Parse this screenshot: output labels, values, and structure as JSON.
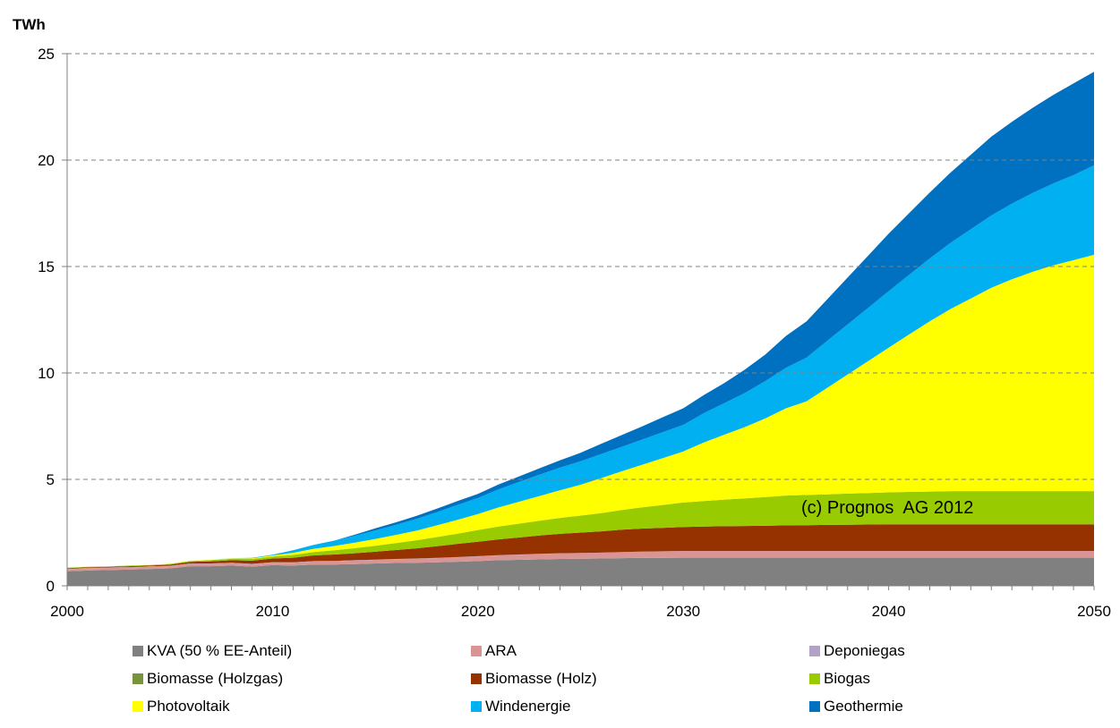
{
  "chart_data": {
    "type": "area",
    "stacked": true,
    "title": "",
    "xlabel": "",
    "ylabel": "TWh",
    "xlim": [
      2000,
      2050
    ],
    "ylim": [
      0,
      25
    ],
    "x_ticks": [
      "2000",
      "2010",
      "2020",
      "2030",
      "2040",
      "2050"
    ],
    "y_ticks": [
      "0",
      "5",
      "10",
      "15",
      "20",
      "25"
    ],
    "grid": "horizontal-dashed",
    "legend_position": "bottom",
    "annotation": "(c) Prognos  AG 2012",
    "x": [
      2000,
      2001,
      2002,
      2003,
      2004,
      2005,
      2006,
      2007,
      2008,
      2009,
      2010,
      2011,
      2012,
      2013,
      2014,
      2015,
      2016,
      2017,
      2018,
      2019,
      2020,
      2021,
      2022,
      2023,
      2024,
      2025,
      2026,
      2027,
      2028,
      2029,
      2030,
      2031,
      2032,
      2033,
      2034,
      2035,
      2036,
      2037,
      2038,
      2039,
      2040,
      2041,
      2042,
      2043,
      2044,
      2045,
      2046,
      2047,
      2048,
      2049,
      2050
    ],
    "series": [
      {
        "name": "KVA (50 % EE-Anteil)",
        "color": "#808080",
        "values": [
          0.68,
          0.72,
          0.74,
          0.76,
          0.79,
          0.82,
          0.92,
          0.92,
          0.95,
          0.9,
          0.97,
          0.95,
          1.0,
          1.0,
          1.02,
          1.05,
          1.07,
          1.08,
          1.1,
          1.13,
          1.16,
          1.2,
          1.22,
          1.24,
          1.26,
          1.27,
          1.28,
          1.3,
          1.31,
          1.31,
          1.32,
          1.32,
          1.32,
          1.32,
          1.32,
          1.32,
          1.32,
          1.32,
          1.32,
          1.32,
          1.32,
          1.32,
          1.32,
          1.32,
          1.32,
          1.32,
          1.32,
          1.32,
          1.32,
          1.32,
          1.32
        ]
      },
      {
        "name": "ARA",
        "color": "#d99594",
        "values": [
          0.1,
          0.1,
          0.1,
          0.1,
          0.1,
          0.1,
          0.11,
          0.11,
          0.11,
          0.11,
          0.12,
          0.13,
          0.14,
          0.15,
          0.16,
          0.17,
          0.18,
          0.19,
          0.2,
          0.21,
          0.22,
          0.23,
          0.24,
          0.25,
          0.26,
          0.27,
          0.28,
          0.29,
          0.3,
          0.31,
          0.32,
          0.32,
          0.32,
          0.32,
          0.32,
          0.32,
          0.32,
          0.32,
          0.32,
          0.32,
          0.32,
          0.32,
          0.32,
          0.32,
          0.32,
          0.32,
          0.32,
          0.32,
          0.32,
          0.32,
          0.32
        ]
      },
      {
        "name": "Deponiegas",
        "color": "#b2a2c7",
        "values": [
          0.02,
          0.02,
          0.02,
          0.02,
          0.02,
          0.02,
          0.02,
          0.02,
          0.02,
          0.02,
          0.02,
          0.02,
          0.02,
          0.02,
          0.02,
          0.01,
          0.01,
          0.01,
          0.01,
          0.01,
          0.01,
          0.01,
          0.01,
          0.01,
          0.01,
          0.0,
          0.0,
          0.0,
          0.0,
          0.0,
          0.0,
          0.0,
          0.0,
          0.0,
          0.0,
          0.0,
          0.0,
          0.0,
          0.0,
          0.0,
          0.0,
          0.0,
          0.0,
          0.0,
          0.0,
          0.0,
          0.0,
          0.0,
          0.0,
          0.0,
          0.0
        ]
      },
      {
        "name": "Biomasse (Holzgas)",
        "color": "#77933c",
        "values": [
          0.0,
          0.0,
          0.0,
          0.0,
          0.0,
          0.0,
          0.0,
          0.0,
          0.0,
          0.0,
          0.0,
          0.0,
          0.0,
          0.0,
          0.0,
          0.0,
          0.0,
          0.0,
          0.0,
          0.0,
          0.0,
          0.0,
          0.0,
          0.0,
          0.0,
          0.0,
          0.0,
          0.0,
          0.0,
          0.0,
          0.0,
          0.0,
          0.0,
          0.0,
          0.0,
          0.0,
          0.0,
          0.0,
          0.0,
          0.0,
          0.0,
          0.0,
          0.0,
          0.0,
          0.0,
          0.0,
          0.0,
          0.0,
          0.0,
          0.0,
          0.0
        ]
      },
      {
        "name": "Biomasse (Holz)",
        "color": "#953200",
        "values": [
          0.03,
          0.03,
          0.03,
          0.04,
          0.04,
          0.05,
          0.07,
          0.1,
          0.12,
          0.15,
          0.17,
          0.22,
          0.27,
          0.3,
          0.33,
          0.37,
          0.42,
          0.48,
          0.55,
          0.62,
          0.68,
          0.74,
          0.8,
          0.86,
          0.91,
          0.96,
          1.0,
          1.05,
          1.08,
          1.1,
          1.12,
          1.14,
          1.16,
          1.17,
          1.18,
          1.2,
          1.21,
          1.22,
          1.23,
          1.24,
          1.25,
          1.25,
          1.25,
          1.25,
          1.25,
          1.25,
          1.25,
          1.25,
          1.25,
          1.25,
          1.25
        ]
      },
      {
        "name": "Biogas",
        "color": "#99cc00",
        "values": [
          0.02,
          0.02,
          0.02,
          0.03,
          0.03,
          0.04,
          0.05,
          0.06,
          0.07,
          0.08,
          0.1,
          0.13,
          0.16,
          0.2,
          0.24,
          0.28,
          0.33,
          0.38,
          0.43,
          0.48,
          0.55,
          0.6,
          0.65,
          0.7,
          0.75,
          0.8,
          0.85,
          0.92,
          1.0,
          1.08,
          1.15,
          1.2,
          1.25,
          1.3,
          1.35,
          1.4,
          1.42,
          1.44,
          1.46,
          1.48,
          1.5,
          1.52,
          1.54,
          1.56,
          1.56,
          1.56,
          1.56,
          1.56,
          1.56,
          1.56,
          1.56
        ]
      },
      {
        "name": "Photovoltaik",
        "color": "#ffff00",
        "values": [
          0.0,
          0.0,
          0.0,
          0.0,
          0.0,
          0.01,
          0.01,
          0.01,
          0.02,
          0.03,
          0.05,
          0.1,
          0.15,
          0.2,
          0.26,
          0.32,
          0.38,
          0.45,
          0.55,
          0.65,
          0.75,
          0.9,
          1.03,
          1.16,
          1.3,
          1.45,
          1.65,
          1.82,
          2.0,
          2.2,
          2.4,
          2.75,
          3.05,
          3.35,
          3.7,
          4.1,
          4.4,
          5.0,
          5.6,
          6.2,
          6.8,
          7.4,
          8.0,
          8.55,
          9.05,
          9.55,
          9.95,
          10.3,
          10.6,
          10.85,
          11.1
        ]
      },
      {
        "name": "Windenergie",
        "color": "#00b0f0",
        "values": [
          0.0,
          0.0,
          0.0,
          0.0,
          0.0,
          0.0,
          0.0,
          0.0,
          0.01,
          0.02,
          0.03,
          0.12,
          0.18,
          0.25,
          0.32,
          0.4,
          0.47,
          0.55,
          0.62,
          0.7,
          0.75,
          0.85,
          0.93,
          1.0,
          1.07,
          1.1,
          1.13,
          1.15,
          1.18,
          1.22,
          1.25,
          1.38,
          1.48,
          1.6,
          1.75,
          1.9,
          2.05,
          2.2,
          2.35,
          2.5,
          2.65,
          2.8,
          2.95,
          3.1,
          3.25,
          3.4,
          3.55,
          3.7,
          3.85,
          4.0,
          4.2
        ]
      },
      {
        "name": "Geothermie",
        "color": "#0070c0",
        "values": [
          0.0,
          0.0,
          0.0,
          0.0,
          0.0,
          0.0,
          0.0,
          0.0,
          0.0,
          0.0,
          0.0,
          0.0,
          0.0,
          0.0,
          0.05,
          0.1,
          0.12,
          0.14,
          0.16,
          0.18,
          0.2,
          0.23,
          0.26,
          0.3,
          0.34,
          0.4,
          0.48,
          0.55,
          0.62,
          0.7,
          0.78,
          0.85,
          0.95,
          1.1,
          1.25,
          1.5,
          1.7,
          1.95,
          2.2,
          2.45,
          2.7,
          2.9,
          3.1,
          3.3,
          3.5,
          3.7,
          3.85,
          4.0,
          4.15,
          4.3,
          4.4
        ]
      }
    ]
  }
}
